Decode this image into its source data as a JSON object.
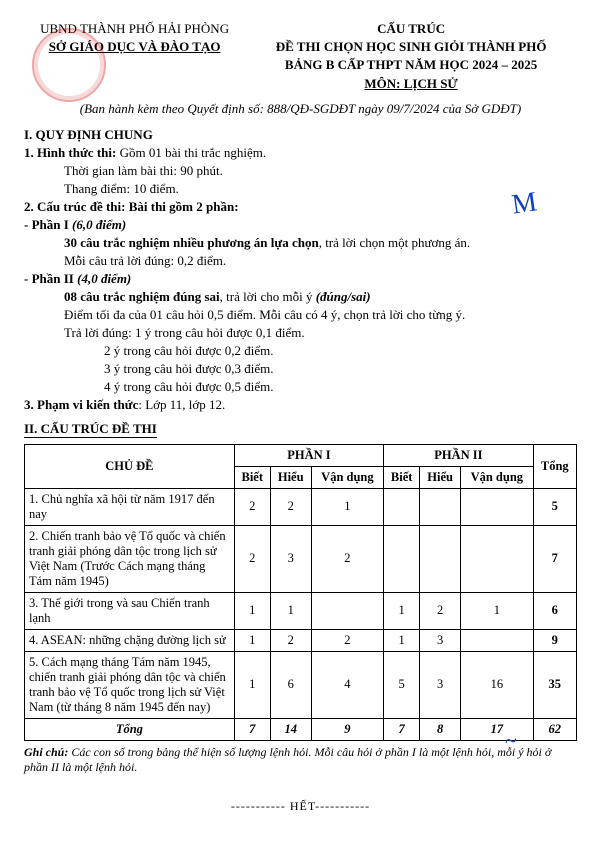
{
  "header": {
    "left_line1": "UBND THÀNH PHỐ HẢI PHÒNG",
    "left_line2": "SỞ GIÁO DỤC VÀ ĐÀO TẠO",
    "right_line1": "CẤU TRÚC",
    "right_line2": "ĐỀ THI CHỌN HỌC SINH GIỎI THÀNH PHỐ",
    "right_line3": "BẢNG B CẤP THPT NĂM HỌC 2024 – 2025",
    "right_line4": "MÔN: LỊCH SỬ",
    "issued": "(Ban hành kèm theo Quyết định số: 888/QĐ-SGDĐT ngày 09/7/2024 của Sở GDĐT)"
  },
  "s1": {
    "title": "I. QUY ĐỊNH CHUNG",
    "l1": "1. Hình thức thi:",
    "l1b": " Gồm 01 bài thi trắc nghiệm.",
    "l2": "Thời gian làm bài thi: 90 phút.",
    "l3": "Thang điểm: 10 điểm.",
    "l4": "2. Cấu trúc đề thi:  Bài thi gồm 2 phần:",
    "p1_label": "- Phần I ",
    "p1_score": "(6,0 điểm)",
    "p1_a": "30 câu trắc nghiệm nhiều phương án lựa chọn",
    "p1_a2": ", trả lời chọn một phương án.",
    "p1_b": "Mỗi câu trả lời đúng:  0,2 điểm.",
    "p2_label": "- Phần II ",
    "p2_score": "(4,0 điểm)",
    "p2_a": "08 câu trắc nghiệm đúng sai",
    "p2_a2": ", trả lời cho mỗi ý ",
    "p2_a3": "(đúng/sai)",
    "p2_b": "Điểm tối đa của 01 câu hỏi 0,5 điểm. Mỗi câu có 4 ý, chọn trả lời cho từng ý.",
    "p2_c": "Trả lời đúng: 1 ý trong câu hỏi được 0,1 điểm.",
    "p2_d": "2 ý trong câu hỏi được 0,2 điểm.",
    "p2_e": "3 ý trong câu hỏi được 0,3 điểm.",
    "p2_f": "4 ý trong câu hỏi được 0,5 điểm.",
    "l5": "3. Phạm vi kiến thức",
    "l5b": ": Lớp 11, lớp 12."
  },
  "s2_title": "II. CẤU TRÚC ĐỀ THI",
  "table": {
    "head_topic": "CHỦ ĐỀ",
    "head_p1": "PHẦN I",
    "head_p2": "PHẦN II",
    "head_total": "Tổng",
    "sub": [
      "Biết",
      "Hiểu",
      "Vận dụng",
      "Biết",
      "Hiểu",
      "Vận dụng"
    ],
    "rows": [
      {
        "topic": "1. Chủ nghĩa xã hội từ năm 1917 đến nay",
        "c": [
          "2",
          "2",
          "1",
          "",
          "",
          "",
          "5"
        ]
      },
      {
        "topic": "2. Chiến tranh bảo vệ Tổ quốc và chiến tranh giải phóng dân tộc trong lịch sử Việt Nam (Trước Cách mạng tháng Tám năm 1945)",
        "c": [
          "2",
          "3",
          "2",
          "",
          "",
          "",
          "7"
        ]
      },
      {
        "topic": "3. Thế giới trong và sau Chiến tranh lạnh",
        "c": [
          "1",
          "1",
          "",
          "1",
          "2",
          "1",
          "6"
        ]
      },
      {
        "topic": "4. ASEAN: những chặng đường lịch sử",
        "c": [
          "1",
          "2",
          "2",
          "1",
          "3",
          "",
          "9"
        ]
      },
      {
        "topic": "5. Cách mạng tháng Tám năm 1945, chiến tranh giải phóng dân tộc và chiến tranh bảo vệ Tổ quốc trong lịch sử Việt Nam (từ tháng 8 năm 1945 đến nay)",
        "c": [
          "1",
          "6",
          "4",
          "5",
          "3",
          "16",
          "35"
        ]
      }
    ],
    "total_label": "Tổng",
    "totals": [
      "7",
      "14",
      "9",
      "7",
      "8",
      "17",
      "62"
    ]
  },
  "note_label": "Ghi chú:",
  "note": " Các con số trong bảng thể hiện số lượng lệnh hỏi. Mỗi câu hỏi ở phần I là một lệnh hỏi, mỗi ý hỏi ở phần II là một lệnh hỏi.",
  "footer": "----------- HẾT-----------"
}
